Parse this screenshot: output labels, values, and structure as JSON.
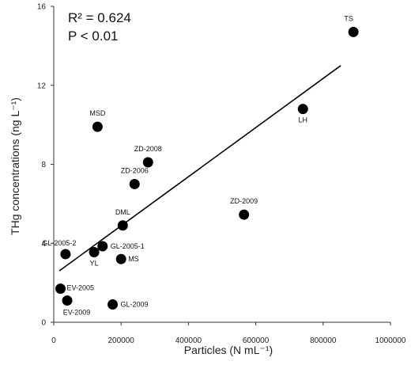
{
  "chart_data": {
    "type": "scatter",
    "xlabel": "Particles (N mL⁻¹)",
    "ylabel": "THg concentrations (ng L⁻¹)",
    "xlim": [
      0,
      1000000
    ],
    "ylim": [
      0,
      16
    ],
    "x_ticks": [
      0,
      200000,
      400000,
      600000,
      800000,
      1000000
    ],
    "x_tick_labels": [
      "0",
      "200000",
      "400000",
      "600000",
      "800000",
      "1000000"
    ],
    "y_ticks": [
      0,
      4,
      8,
      12,
      16
    ],
    "y_tick_labels": [
      "0",
      "4",
      "8",
      "12",
      "16"
    ],
    "grid": false,
    "stats": {
      "r2": "R² = 0.624",
      "p": "P  < 0.01"
    },
    "points": [
      {
        "label": "TS",
        "x": 890000,
        "y": 14.7
      },
      {
        "label": "LH",
        "x": 740000,
        "y": 10.8
      },
      {
        "label": "MSD",
        "x": 130000,
        "y": 9.9
      },
      {
        "label": "ZD-2008",
        "x": 280000,
        "y": 8.1
      },
      {
        "label": "ZD-2006",
        "x": 240000,
        "y": 7.0
      },
      {
        "label": "ZD-2009",
        "x": 565000,
        "y": 5.45
      },
      {
        "label": "DML",
        "x": 205000,
        "y": 4.9
      },
      {
        "label": "GL-2005-1",
        "x": 145000,
        "y": 3.85
      },
      {
        "label": "GL-2005-2",
        "x": 35000,
        "y": 3.45
      },
      {
        "label": "YL",
        "x": 120000,
        "y": 3.55
      },
      {
        "label": "MS",
        "x": 200000,
        "y": 3.2
      },
      {
        "label": "EV-2005",
        "x": 20000,
        "y": 1.7
      },
      {
        "label": "EV-2009",
        "x": 40000,
        "y": 1.1
      },
      {
        "label": "GL-2009",
        "x": 175000,
        "y": 0.9
      }
    ],
    "trendline": {
      "x": [
        0,
        890000
      ],
      "y": [
        2.6,
        13.0
      ]
    },
    "marker_color": "#000000"
  }
}
